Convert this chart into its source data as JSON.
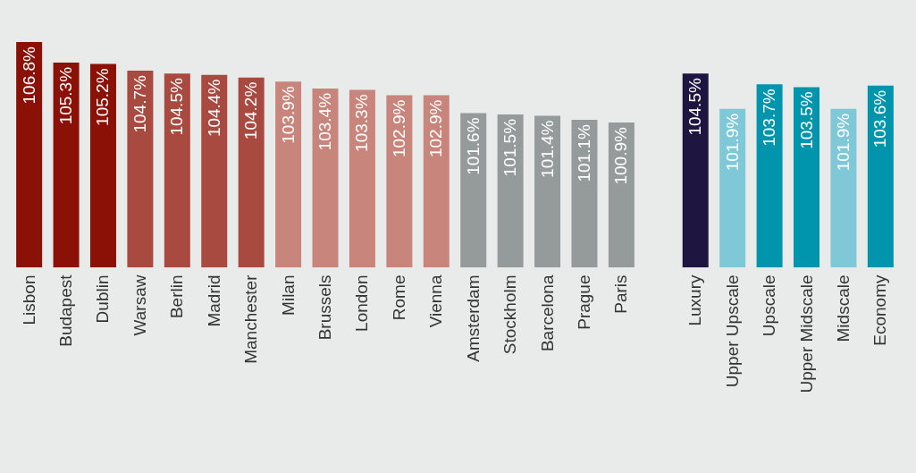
{
  "chart_data": {
    "type": "bar",
    "categories": [
      "Lisbon",
      "Budapest",
      "Dublin",
      "Warsaw",
      "Berlin",
      "Madrid",
      "Manchester",
      "Milan",
      "Brussels",
      "London",
      "Rome",
      "Vienna",
      "Amsterdam",
      "Stockholm",
      "Barcelona",
      "Prague",
      "Paris",
      null,
      "Luxury",
      "Upper Upscale",
      "Upscale",
      "Upper Midscale",
      "Midscale",
      "Economy"
    ],
    "values": [
      106.8,
      105.3,
      105.2,
      104.7,
      104.5,
      104.4,
      104.2,
      103.9,
      103.4,
      103.3,
      102.9,
      102.9,
      101.6,
      101.5,
      101.4,
      101.1,
      100.9,
      null,
      104.5,
      101.9,
      103.7,
      103.5,
      101.9,
      103.6
    ],
    "value_labels": [
      "106.8%",
      "105.3%",
      "105.2%",
      "104.7%",
      "104.5%",
      "104.4%",
      "104.2%",
      "103.9%",
      "103.4%",
      "103.3%",
      "102.9%",
      "102.9%",
      "101.6%",
      "101.5%",
      "101.4%",
      "101.1%",
      "100.9%",
      null,
      "104.5%",
      "101.9%",
      "103.7%",
      "103.5%",
      "101.9%",
      "103.6%"
    ],
    "colors": [
      "#8b1106",
      "#8b1106",
      "#8b1106",
      "#a84a40",
      "#a84a40",
      "#a84a40",
      "#a84a40",
      "#c8857c",
      "#c8857c",
      "#c8857c",
      "#c8857c",
      "#c8857c",
      "#959b9a",
      "#959b9a",
      "#959b9a",
      "#959b9a",
      "#959b9a",
      "#ffffff",
      "#1e1640",
      "#7ec8d8",
      "#0095ad",
      "#0095ad",
      "#7ec8d8",
      "#0095ad"
    ],
    "ylim": [
      90.3,
      106.8
    ]
  }
}
